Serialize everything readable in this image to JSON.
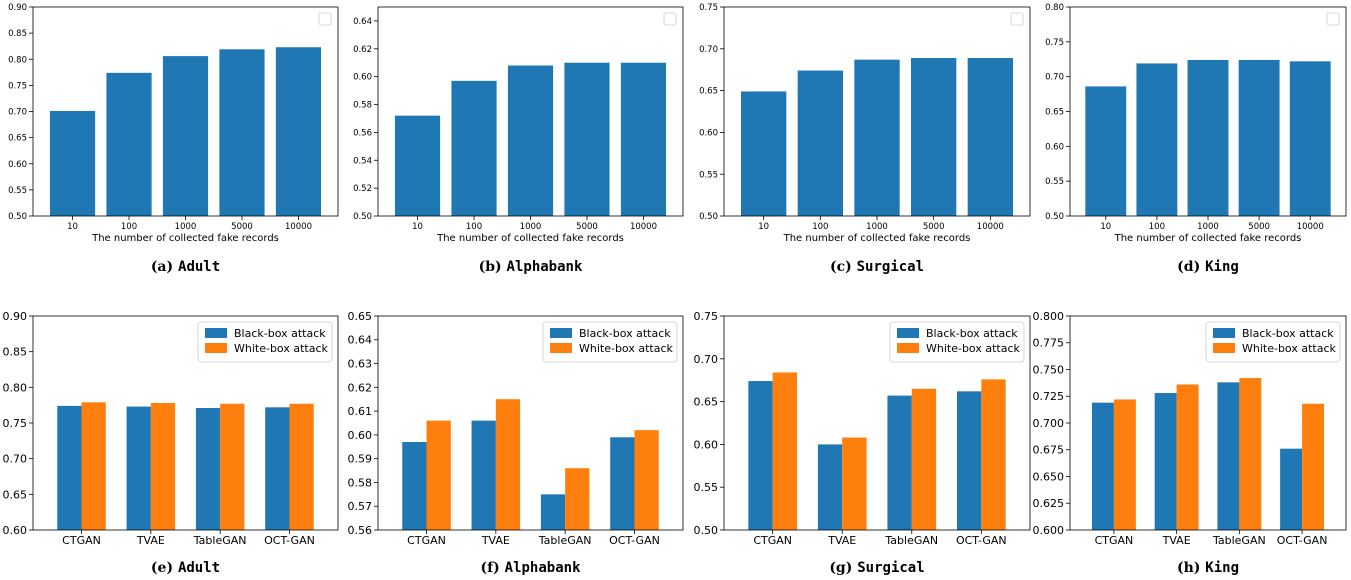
{
  "colors": {
    "black_box": "#1f77b4",
    "white_box": "#ff7f0e"
  },
  "chart_data": [
    {
      "type": "bar",
      "caption_prefix": "(a)",
      "caption_name": "Adult",
      "categories": [
        "10",
        "100",
        "1000",
        "5000",
        "10000"
      ],
      "values": [
        0.701,
        0.774,
        0.806,
        0.819,
        0.823
      ],
      "xlabel": "The number of collected fake records",
      "ylim": [
        0.5,
        0.9
      ],
      "yticks": [
        "0.50",
        "0.55",
        "0.60",
        "0.65",
        "0.70",
        "0.75",
        "0.80",
        "0.85",
        "0.90"
      ],
      "legend": "top-right (empty)"
    },
    {
      "type": "bar",
      "caption_prefix": "(b)",
      "caption_name": "Alphabank",
      "categories": [
        "10",
        "100",
        "1000",
        "5000",
        "10000"
      ],
      "values": [
        0.572,
        0.597,
        0.608,
        0.61,
        0.61
      ],
      "xlabel": "The number of collected fake records",
      "ylim": [
        0.5,
        0.65
      ],
      "yticks": [
        "0.50",
        "0.52",
        "0.54",
        "0.56",
        "0.58",
        "0.60",
        "0.62",
        "0.64"
      ],
      "legend": "top-right (empty)"
    },
    {
      "type": "bar",
      "caption_prefix": "(c)",
      "caption_name": "Surgical",
      "categories": [
        "10",
        "100",
        "1000",
        "5000",
        "10000"
      ],
      "values": [
        0.649,
        0.674,
        0.687,
        0.689,
        0.689
      ],
      "xlabel": "The number of collected fake records",
      "ylim": [
        0.5,
        0.75
      ],
      "yticks": [
        "0.50",
        "0.55",
        "0.60",
        "0.65",
        "0.70",
        "0.75"
      ],
      "legend": "top-right (empty)"
    },
    {
      "type": "bar",
      "caption_prefix": "(d)",
      "caption_name": "King",
      "categories": [
        "10",
        "100",
        "1000",
        "5000",
        "10000"
      ],
      "values": [
        0.686,
        0.719,
        0.724,
        0.724,
        0.722
      ],
      "xlabel": "The number of collected fake records",
      "ylim": [
        0.5,
        0.8
      ],
      "yticks": [
        "0.50",
        "0.55",
        "0.60",
        "0.65",
        "0.70",
        "0.75",
        "0.80"
      ],
      "legend": "top-right (empty)"
    },
    {
      "type": "bar",
      "caption_prefix": "(e)",
      "caption_name": "Adult",
      "categories": [
        "CTGAN",
        "TVAE",
        "TableGAN",
        "OCT-GAN"
      ],
      "series": [
        {
          "name": "Black-box attack",
          "values": [
            0.774,
            0.773,
            0.771,
            0.772
          ]
        },
        {
          "name": "White-box attack",
          "values": [
            0.779,
            0.778,
            0.777,
            0.777
          ]
        }
      ],
      "ylim": [
        0.6,
        0.9
      ],
      "yticks": [
        "0.60",
        "0.65",
        "0.70",
        "0.75",
        "0.80",
        "0.85",
        "0.90"
      ],
      "legend": "top-right"
    },
    {
      "type": "bar",
      "caption_prefix": "(f)",
      "caption_name": "Alphabank",
      "categories": [
        "CTGAN",
        "TVAE",
        "TableGAN",
        "OCT-GAN"
      ],
      "series": [
        {
          "name": "Black-box attack",
          "values": [
            0.597,
            0.606,
            0.575,
            0.599
          ]
        },
        {
          "name": "White-box attack",
          "values": [
            0.606,
            0.615,
            0.586,
            0.602
          ]
        }
      ],
      "ylim": [
        0.56,
        0.65
      ],
      "yticks": [
        "0.56",
        "0.57",
        "0.58",
        "0.59",
        "0.60",
        "0.61",
        "0.62",
        "0.63",
        "0.64",
        "0.65"
      ],
      "legend": "top-right"
    },
    {
      "type": "bar",
      "caption_prefix": "(g)",
      "caption_name": "Surgical",
      "categories": [
        "CTGAN",
        "TVAE",
        "TableGAN",
        "OCT-GAN"
      ],
      "series": [
        {
          "name": "Black-box attack",
          "values": [
            0.674,
            0.6,
            0.657,
            0.662
          ]
        },
        {
          "name": "White-box attack",
          "values": [
            0.684,
            0.608,
            0.665,
            0.676
          ]
        }
      ],
      "ylim": [
        0.5,
        0.75
      ],
      "yticks": [
        "0.50",
        "0.55",
        "0.60",
        "0.65",
        "0.70",
        "0.75"
      ],
      "legend": "top-right"
    },
    {
      "type": "bar",
      "caption_prefix": "(h)",
      "caption_name": "King",
      "categories": [
        "CTGAN",
        "TVAE",
        "TableGAN",
        "OCT-GAN"
      ],
      "series": [
        {
          "name": "Black-box attack",
          "values": [
            0.719,
            0.728,
            0.738,
            0.676
          ]
        },
        {
          "name": "White-box attack",
          "values": [
            0.722,
            0.736,
            0.742,
            0.718
          ]
        }
      ],
      "ylim": [
        0.6,
        0.8
      ],
      "yticks": [
        "0.600",
        "0.625",
        "0.650",
        "0.675",
        "0.700",
        "0.725",
        "0.750",
        "0.775",
        "0.800"
      ],
      "legend": "top-right"
    }
  ]
}
